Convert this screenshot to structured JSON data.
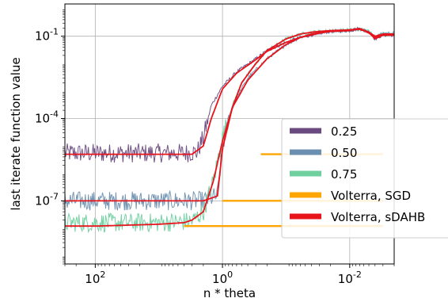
{
  "chart_data": {
    "type": "line",
    "xlabel": "n * theta",
    "ylabel": "last iterate function value",
    "x_axis": {
      "scale": "log",
      "direction": "decreasing",
      "range": [
        300,
        0.002
      ],
      "ticks": [
        {
          "value": 100,
          "label": "10^2"
        },
        {
          "value": 1,
          "label": "10^0"
        },
        {
          "value": 0.01,
          "label": "10^-2"
        }
      ]
    },
    "y_axis": {
      "scale": "log",
      "range": [
        5e-10,
        1.5
      ],
      "ticks": [
        {
          "value": 0.1,
          "label": "10^-1"
        },
        {
          "value": 0.0001,
          "label": "10^-4"
        },
        {
          "value": 1e-07,
          "label": "10^-7"
        }
      ]
    },
    "grid": true,
    "legend_position": "right",
    "series": [
      {
        "name": "0.25",
        "color": "#6b4a80",
        "style": "noisy",
        "x": [
          300,
          100,
          10,
          4,
          2.5,
          2,
          1.5,
          1,
          0.6,
          0.3,
          0.2,
          0.1,
          0.06,
          0.04,
          0.03,
          0.02,
          0.01,
          0.007,
          0.005,
          0.004,
          0.003
        ],
        "y": [
          5.5e-06,
          5.5e-06,
          5.5e-06,
          5.5e-06,
          6e-06,
          2e-05,
          0.0003,
          0.0015,
          0.005,
          0.015,
          0.03,
          0.06,
          0.09,
          0.11,
          0.13,
          0.15,
          0.16,
          0.19,
          0.15,
          0.08,
          0.11
        ]
      },
      {
        "name": "0.50",
        "color": "#6b8fb0",
        "style": "noisy",
        "x": [
          300,
          100,
          10,
          2,
          1.2,
          1,
          0.7,
          0.4,
          0.2,
          0.1,
          0.06,
          0.04,
          0.03,
          0.02,
          0.01,
          0.007,
          0.005,
          0.004,
          0.003
        ],
        "y": [
          1e-07,
          1e-07,
          1e-07,
          1e-07,
          1.5e-07,
          1e-05,
          0.0003,
          0.003,
          0.015,
          0.05,
          0.09,
          0.12,
          0.135,
          0.15,
          0.17,
          0.19,
          0.14,
          0.09,
          0.13
        ]
      },
      {
        "name": "0.75",
        "color": "#6fcf9f",
        "style": "noisy",
        "x": [
          300,
          100,
          10,
          3,
          2,
          1.4,
          1,
          0.7,
          0.5,
          0.3,
          0.2,
          0.1,
          0.06,
          0.04,
          0.03,
          0.02,
          0.01,
          0.007,
          0.005,
          0.004,
          0.003
        ],
        "y": [
          1.6e-08,
          1.6e-08,
          1.6e-08,
          1.8e-08,
          4e-08,
          5e-07,
          2e-05,
          0.0003,
          0.002,
          0.01,
          0.03,
          0.08,
          0.12,
          0.14,
          0.15,
          0.16,
          0.17,
          0.18,
          0.15,
          0.1,
          0.12
        ]
      },
      {
        "name": "Volterra, SGD",
        "color": "#ffa500",
        "style": "flat",
        "segments": [
          {
            "x": [
              0.25,
              0.003
            ],
            "y": [
              5e-06,
              5e-06
            ]
          },
          {
            "x": [
              1,
              0.003
            ],
            "y": [
              1e-07,
              1e-07
            ]
          },
          {
            "x": [
              4,
              0.003
            ],
            "y": [
              1.2e-08,
              1.2e-08
            ]
          }
        ]
      },
      {
        "name": "Volterra, sDAHB",
        "color": "#e8141c",
        "style": "smooth",
        "curves": [
          {
            "x": [
              300,
              100,
              10,
              3,
              2,
              1.5,
              1,
              0.6,
              0.3,
              0.2,
              0.1,
              0.06,
              0.04,
              0.03,
              0.02,
              0.01,
              0.007,
              0.005,
              0.004,
              0.003
            ],
            "y": [
              5e-06,
              5e-06,
              5e-06,
              5e-06,
              1e-05,
              0.0001,
              0.0012,
              0.0045,
              0.014,
              0.028,
              0.06,
              0.09,
              0.11,
              0.13,
              0.15,
              0.16,
              0.19,
              0.14,
              0.08,
              0.11
            ]
          },
          {
            "x": [
              300,
              100,
              10,
              2,
              1.2,
              1,
              0.7,
              0.4,
              0.2,
              0.1,
              0.06,
              0.04,
              0.03,
              0.02,
              0.01,
              0.007,
              0.005,
              0.004,
              0.003
            ],
            "y": [
              1e-07,
              1e-07,
              1e-07,
              1e-07,
              1.5e-07,
              8e-06,
              0.00025,
              0.0025,
              0.015,
              0.05,
              0.09,
              0.12,
              0.135,
              0.15,
              0.17,
              0.19,
              0.13,
              0.09,
              0.12
            ]
          },
          {
            "x": [
              300,
              100,
              10,
              4,
              3,
              2,
              1.4,
              1,
              0.7,
              0.5,
              0.3,
              0.2,
              0.1,
              0.06,
              0.04,
              0.03,
              0.02,
              0.01,
              0.007,
              0.005,
              0.004,
              0.003
            ],
            "y": [
              1.2e-08,
              1.2e-08,
              1.4e-08,
              1.6e-08,
              2e-08,
              4e-08,
              5e-07,
              1.5e-05,
              0.00025,
              0.002,
              0.01,
              0.03,
              0.08,
              0.12,
              0.14,
              0.15,
              0.16,
              0.17,
              0.18,
              0.14,
              0.1,
              0.12
            ]
          }
        ]
      }
    ]
  }
}
